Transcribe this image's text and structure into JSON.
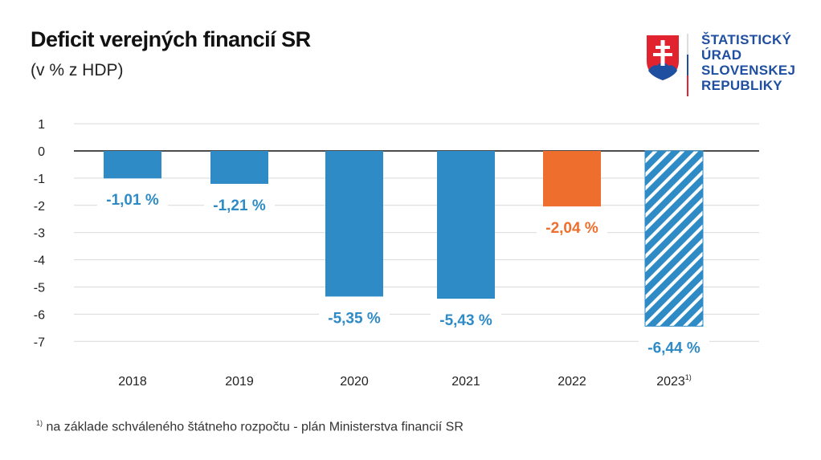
{
  "header": {
    "title": "Deficit verejných financií SR",
    "subtitle": "(v % z HDP)"
  },
  "logo": {
    "lines": [
      "ŠTATISTICKÝ",
      "ÚRAD",
      "SLOVENSKEJ",
      "REPUBLIKY"
    ]
  },
  "footnote": {
    "marker": "1)",
    "text": "na základe schváleného štátneho rozpočtu - plán Ministerstva financií SR"
  },
  "chart_data": {
    "type": "bar",
    "categories": [
      "2018",
      "2019",
      "2020",
      "2021",
      "2022",
      "2023"
    ],
    "category_superscripts": [
      "",
      "",
      "",
      "",
      "",
      "1)"
    ],
    "values": [
      -1.01,
      -1.21,
      -5.35,
      -5.43,
      -2.04,
      -6.44
    ],
    "data_labels": [
      "-1,01 %",
      "-1,21 %",
      "-5,35 %",
      "-5,43 %",
      "-2,04 %",
      "-6,44 %"
    ],
    "bar_styles": [
      "solid",
      "solid",
      "solid",
      "solid",
      "solid",
      "hatched"
    ],
    "colors": [
      "#2e8bc6",
      "#2e8bc6",
      "#2e8bc6",
      "#2e8bc6",
      "#ee6f2d",
      "#2e8bc6"
    ],
    "yticks": [
      "1",
      "0",
      "-1",
      "-2",
      "-3",
      "-4",
      "-5",
      "-6",
      "-7"
    ],
    "ylim": [
      -7,
      1
    ],
    "grid": true,
    "title": "Deficit verejných financií SR",
    "ylabel": "(v % z HDP)",
    "xlabel": ""
  }
}
